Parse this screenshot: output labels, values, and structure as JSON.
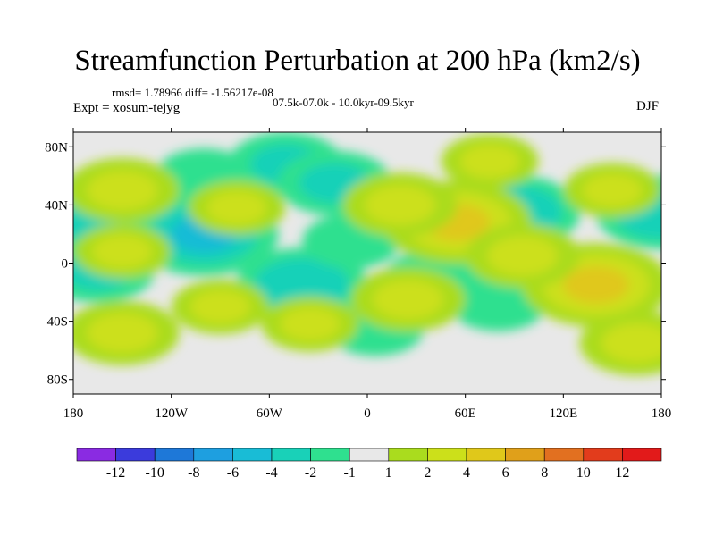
{
  "header": {
    "title": "Streamfunction Perturbation at 200 hPa (km2/s)",
    "stats": "rmsd= 1.78966 diff= -1.56217e-08",
    "period": "07.5k-07.0k - 10.0kyr-09.5kyr",
    "experiment": "Expt = xosum-tejyg",
    "season": "DJF"
  },
  "chart_data": {
    "type": "heatmap",
    "title": "Streamfunction Perturbation at 200 hPa (km2/s)",
    "xlabel": "",
    "ylabel": "",
    "xlim": [
      -180,
      180
    ],
    "ylim": [
      -90,
      90
    ],
    "x_ticks": [
      {
        "value": -180,
        "label": "180"
      },
      {
        "value": -120,
        "label": "120W"
      },
      {
        "value": -60,
        "label": "60W"
      },
      {
        "value": 0,
        "label": "0"
      },
      {
        "value": 60,
        "label": "60E"
      },
      {
        "value": 120,
        "label": "120E"
      },
      {
        "value": 180,
        "label": "180"
      }
    ],
    "y_ticks": [
      {
        "value": 80,
        "label": "80N"
      },
      {
        "value": 40,
        "label": "40N"
      },
      {
        "value": 0,
        "label": "0"
      },
      {
        "value": -40,
        "label": "40S"
      },
      {
        "value": -80,
        "label": "80S"
      }
    ],
    "colorbar": {
      "levels": [
        -12,
        -10,
        -8,
        -6,
        -4,
        -2,
        -1,
        1,
        2,
        4,
        6,
        8,
        10,
        12
      ],
      "colors": [
        "#8a2be2",
        "#3b3bdc",
        "#1e78d8",
        "#1e9fe0",
        "#19bcd6",
        "#19d1b8",
        "#2fe08f",
        "#e8e8e8",
        "#aadc1e",
        "#cce01a",
        "#e0c81a",
        "#e0a01a",
        "#e27020",
        "#e23c1c",
        "#e21a1a"
      ]
    },
    "field": [
      {
        "lon": -100,
        "lat": 20,
        "value": -5
      },
      {
        "lon": -40,
        "lat": -15,
        "value": -4
      },
      {
        "lon": -165,
        "lat": -5,
        "value": -3
      },
      {
        "lon": -50,
        "lat": 68,
        "value": -3
      },
      {
        "lon": -20,
        "lat": 55,
        "value": -3
      },
      {
        "lon": -100,
        "lat": 60,
        "value": -2
      },
      {
        "lon": 90,
        "lat": 35,
        "value": -4
      },
      {
        "lon": 180,
        "lat": 35,
        "value": -4
      },
      {
        "lon": -178,
        "lat": 35,
        "value": -4
      },
      {
        "lon": 5,
        "lat": -45,
        "value": -2
      },
      {
        "lon": 105,
        "lat": -15,
        "value": -2
      },
      {
        "lon": 40,
        "lat": -10,
        "value": -2
      },
      {
        "lon": 80,
        "lat": -28,
        "value": -2
      },
      {
        "lon": -10,
        "lat": 15,
        "value": -2
      },
      {
        "lon": 55,
        "lat": 28,
        "value": 5
      },
      {
        "lon": 20,
        "lat": 40,
        "value": 3
      },
      {
        "lon": 140,
        "lat": -15,
        "value": 5
      },
      {
        "lon": 95,
        "lat": 5,
        "value": 3
      },
      {
        "lon": -80,
        "lat": 38,
        "value": 2
      },
      {
        "lon": -150,
        "lat": 50,
        "value": 3
      },
      {
        "lon": 150,
        "lat": 50,
        "value": 2
      },
      {
        "lon": -150,
        "lat": -48,
        "value": 3
      },
      {
        "lon": 165,
        "lat": -55,
        "value": 3
      },
      {
        "lon": -90,
        "lat": -30,
        "value": 2
      },
      {
        "lon": 25,
        "lat": -25,
        "value": 3
      },
      {
        "lon": 75,
        "lat": 70,
        "value": 2
      },
      {
        "lon": -150,
        "lat": 8,
        "value": 2
      },
      {
        "lon": -35,
        "lat": -42,
        "value": 2
      }
    ]
  }
}
